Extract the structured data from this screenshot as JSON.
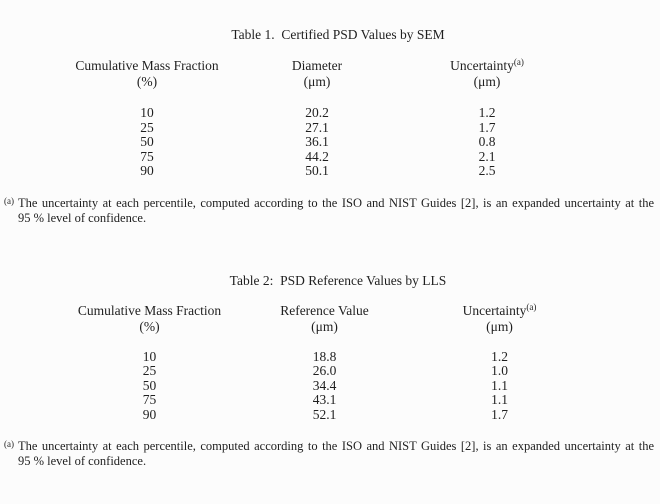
{
  "tables": [
    {
      "title": "Table 1.  Certified PSD Values by SEM",
      "columns": [
        {
          "line1": "Cumulative Mass Fraction",
          "sup": "",
          "line2": "(%)"
        },
        {
          "line1": "Diameter",
          "sup": "",
          "line2": "(μm)"
        },
        {
          "line1": "Uncertainty",
          "sup": "(a)",
          "line2": "(μm)"
        }
      ],
      "rows": [
        [
          "10",
          "20.2",
          "1.2"
        ],
        [
          "25",
          "27.1",
          "1.7"
        ],
        [
          "50",
          "36.1",
          "0.8"
        ],
        [
          "75",
          "44.2",
          "2.1"
        ],
        [
          "90",
          "50.1",
          "2.5"
        ]
      ]
    },
    {
      "title": "Table 2:  PSD Reference Values by LLS",
      "columns": [
        {
          "line1": "Cumulative Mass Fraction",
          "sup": "",
          "line2": "(%)"
        },
        {
          "line1": "Reference Value",
          "sup": "",
          "line2": "(μm)"
        },
        {
          "line1": "Uncertainty",
          "sup": "(a)",
          "line2": "(μm)"
        }
      ],
      "rows": [
        [
          "10",
          "18.8",
          "1.2"
        ],
        [
          "25",
          "26.0",
          "1.0"
        ],
        [
          "50",
          "34.4",
          "1.1"
        ],
        [
          "75",
          "43.1",
          "1.1"
        ],
        [
          "90",
          "52.1",
          "1.7"
        ]
      ]
    }
  ],
  "footnotes": [
    {
      "marker": "(a)",
      "line1": "The uncertainty at each percentile, computed according to the ISO and NIST Guides [2], is an expanded uncertainty at the",
      "line2": "95 % level of confidence."
    },
    {
      "marker": "(a)",
      "line1": "The uncertainty at each percentile, computed according to the ISO and NIST Guides [2], is an expanded uncertainty at the",
      "line2": "95 % level of confidence."
    }
  ],
  "chart_data": [
    {
      "type": "table",
      "title": "Table 1. Certified PSD Values by SEM",
      "columns": [
        "Cumulative Mass Fraction (%)",
        "Diameter (μm)",
        "Uncertainty(a) (μm)"
      ],
      "rows": [
        [
          10,
          20.2,
          1.2
        ],
        [
          25,
          27.1,
          1.7
        ],
        [
          50,
          36.1,
          0.8
        ],
        [
          75,
          44.2,
          2.1
        ],
        [
          90,
          50.1,
          2.5
        ]
      ]
    },
    {
      "type": "table",
      "title": "Table 2: PSD Reference Values by LLS",
      "columns": [
        "Cumulative Mass Fraction (%)",
        "Reference Value (μm)",
        "Uncertainty(a) (μm)"
      ],
      "rows": [
        [
          10,
          18.8,
          1.2
        ],
        [
          25,
          26.0,
          1.0
        ],
        [
          50,
          34.4,
          1.1
        ],
        [
          75,
          43.1,
          1.1
        ],
        [
          90,
          52.1,
          1.7
        ]
      ]
    }
  ]
}
